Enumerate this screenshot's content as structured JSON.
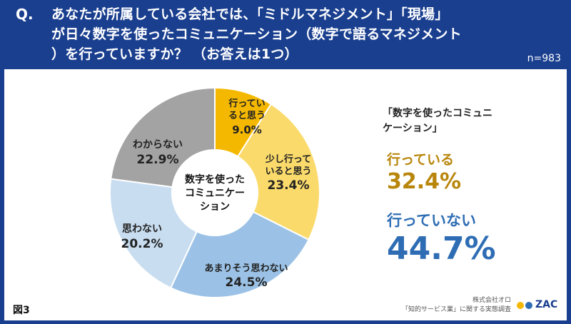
{
  "header": {
    "q_mark": "Q.",
    "question_lines": [
      "あなたが所属している会社では、「ミドルマネジメント」「現場」",
      "が日々数字を使ったコミュニケーション（数字で語るマネジメント",
      "）を行っていますか？ （お答えは1つ）"
    ],
    "sample_size": "n=983"
  },
  "chart_data": {
    "type": "pie",
    "center_label": [
      "数字を使った",
      "コミュニケー",
      "ション"
    ],
    "slices": [
      {
        "label": [
          "行ってい",
          "ると思う"
        ],
        "value": 9.0,
        "display": "9.0%",
        "color": "#f5b800"
      },
      {
        "label": [
          "少し行って",
          "いると思う"
        ],
        "value": 23.4,
        "display": "23.4%",
        "color": "#fada6b"
      },
      {
        "label": [
          "あまりそう思わない"
        ],
        "value": 24.5,
        "display": "24.5%",
        "color": "#9bc2e6"
      },
      {
        "label": [
          "思わない"
        ],
        "value": 20.2,
        "display": "20.2%",
        "color": "#c8ddf0"
      },
      {
        "label": [
          "わからない"
        ],
        "value": 22.9,
        "display": "22.9%",
        "color": "#a3a3a3"
      }
    ]
  },
  "summary": {
    "title_lines": [
      "「数字を使ったコミュニ",
      "ケーション」"
    ],
    "yes_label": "行っている",
    "yes_value": "32.4%",
    "no_label": "行っていない",
    "no_value": "44.7%"
  },
  "footer": {
    "figure_label": "図3",
    "credit_lines": [
      "株式会社オロ",
      "「知的サービス業」に関する実態調査"
    ],
    "logo_text": "ZAC",
    "logo_dot_colors": [
      "#f5b800",
      "#2e6db4"
    ]
  }
}
